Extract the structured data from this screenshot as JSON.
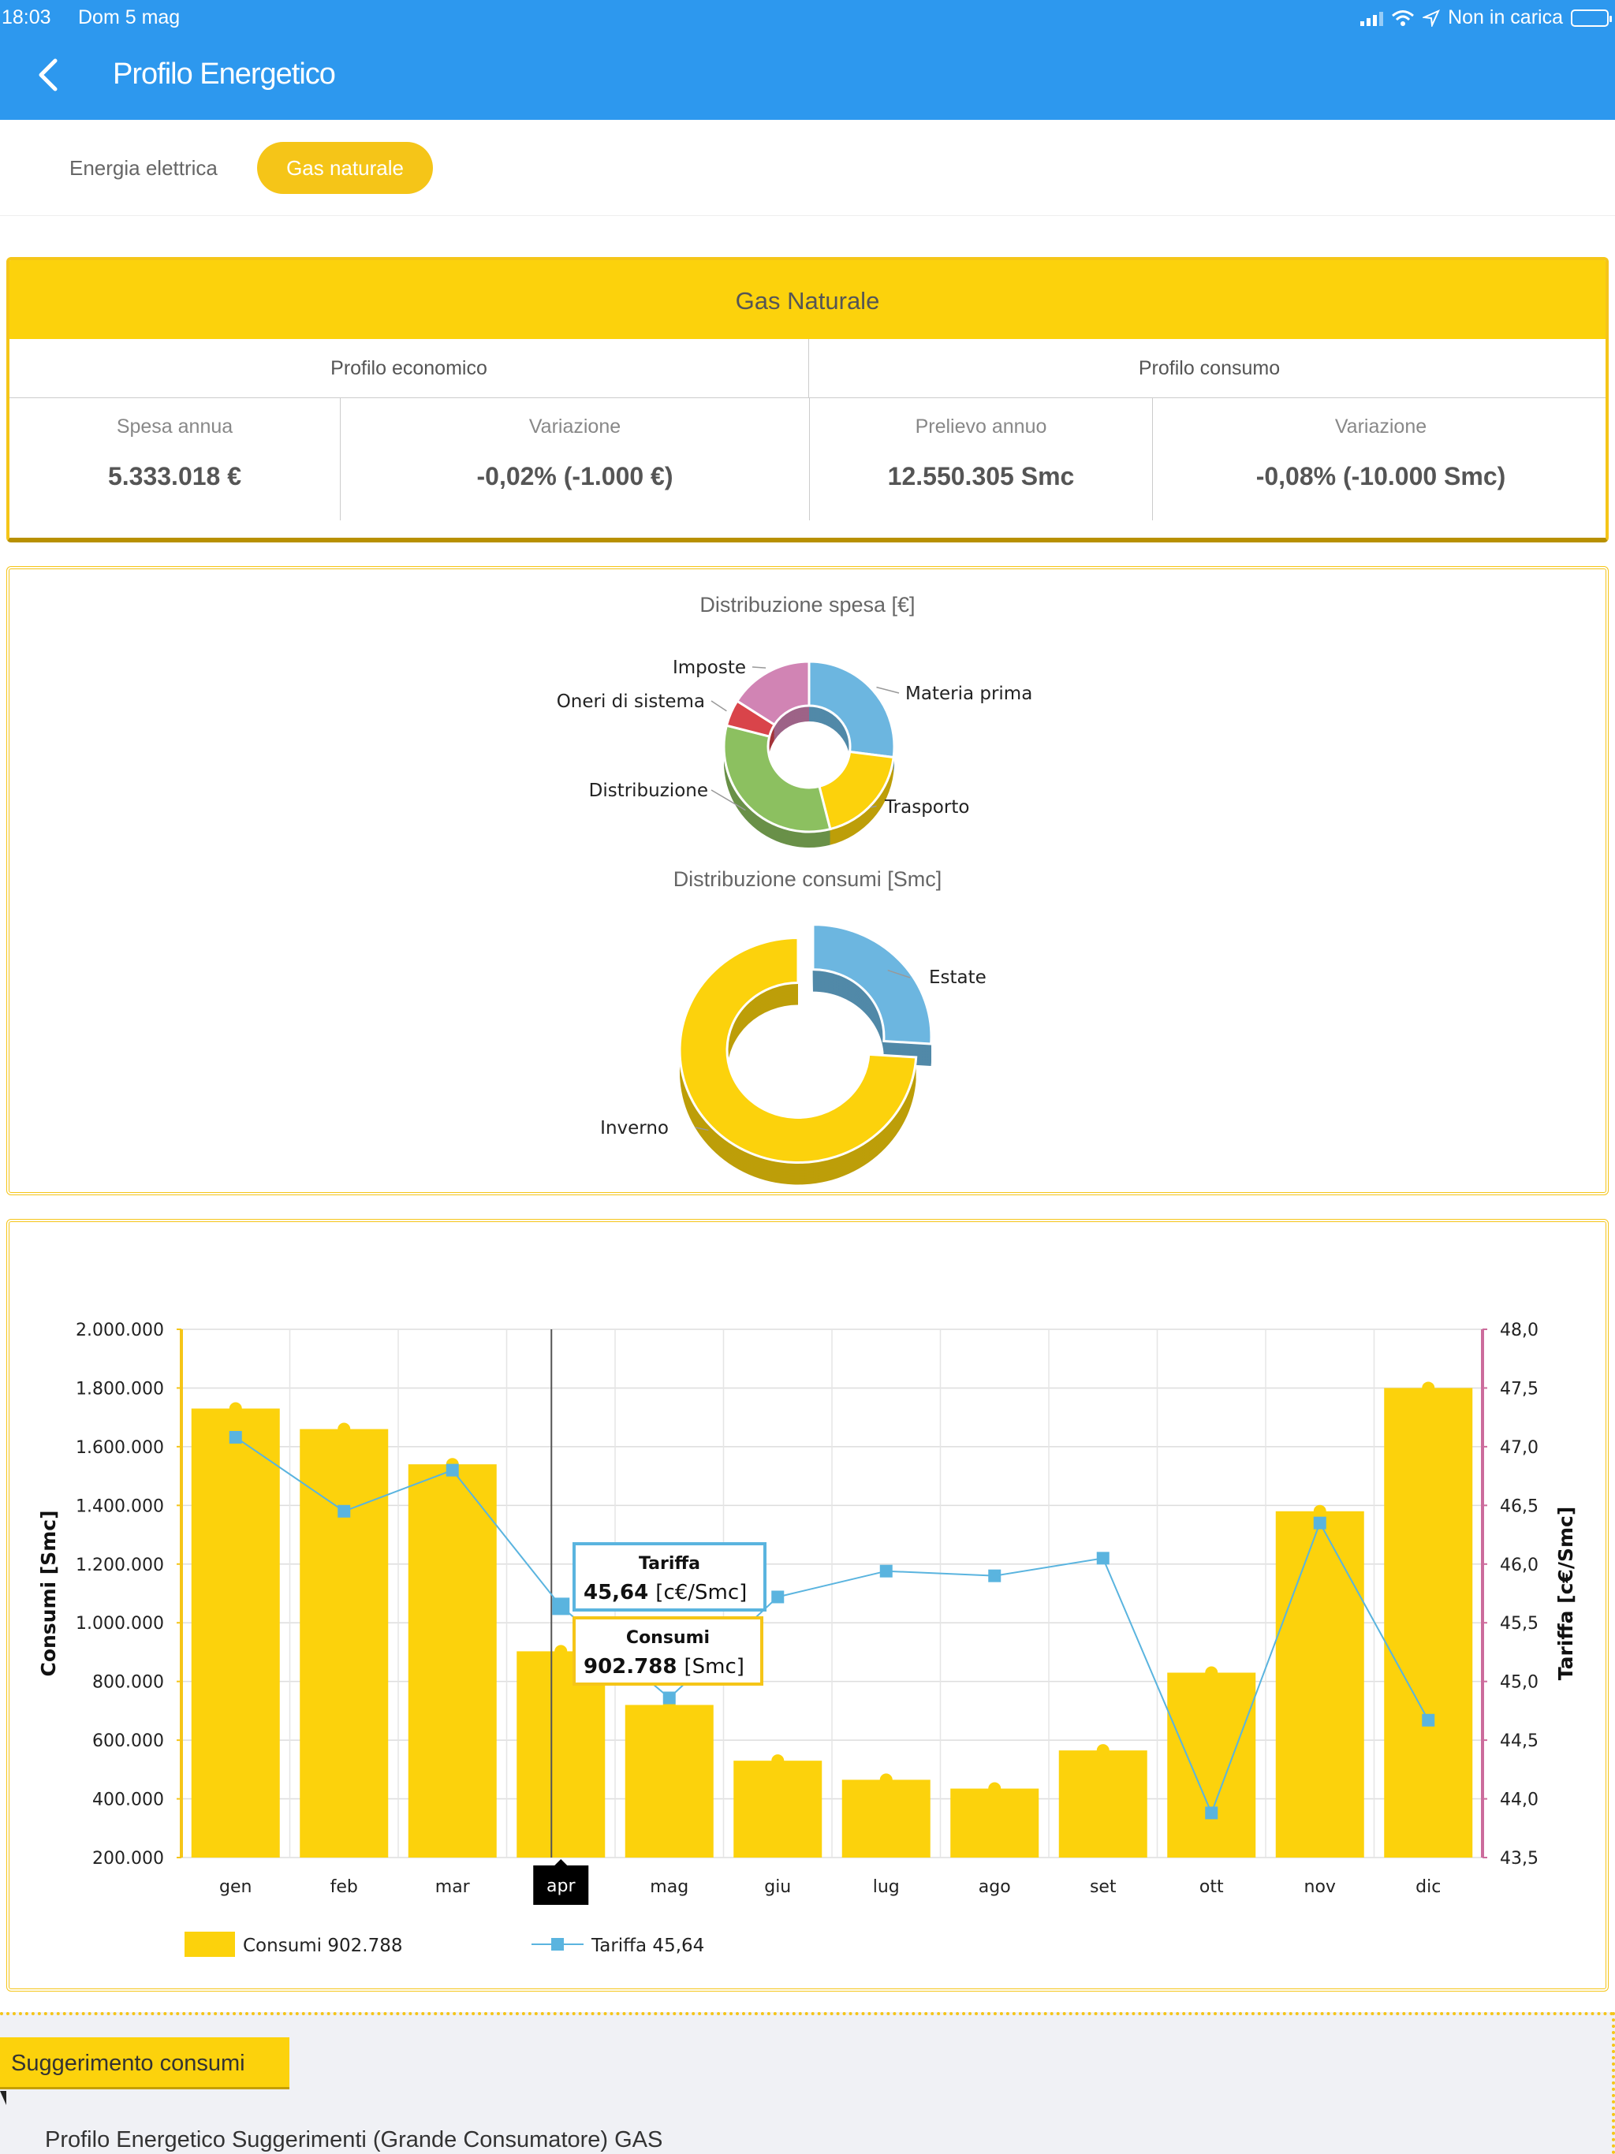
{
  "status_bar": {
    "time": "18:03",
    "date": "Dom 5 mag",
    "battery_text": "Non in carica"
  },
  "nav": {
    "title": "Profilo Energetico",
    "back_icon": "chevron-left-icon"
  },
  "tabs": [
    {
      "label": "Energia elettrica",
      "active": false
    },
    {
      "label": "Gas naturale",
      "active": true
    }
  ],
  "profile": {
    "title": "Gas Naturale",
    "economic_title": "Profilo economico",
    "consumption_title": "Profilo consumo",
    "cells": [
      {
        "label": "Spesa annua",
        "value": "5.333.018 €"
      },
      {
        "label": "Variazione",
        "value": "-0,02% (-1.000 €)"
      },
      {
        "label": "Prelievo annuo",
        "value": "12.550.305 Smc"
      },
      {
        "label": "Variazione",
        "value": "-0,08% (-10.000 Smc)"
      }
    ]
  },
  "colors": {
    "accent": "#fcd20c",
    "header": "#2d98ee",
    "tariff": "#5ab4df"
  },
  "chart_data": [
    {
      "type": "pie",
      "title": "Distribuzione spesa [€]",
      "labels": [
        "Materia prima",
        "Trasporto",
        "Distribuzione",
        "Oneri di sistema",
        "Imposte"
      ],
      "values": [
        27,
        19,
        33,
        5,
        16
      ],
      "colors": [
        "#6cb6e0",
        "#fcd20c",
        "#8cc060",
        "#d9444a",
        "#d184b4"
      ]
    },
    {
      "type": "pie",
      "title": "Distribuzione consumi [Smc]",
      "labels": [
        "Estate",
        "Inverno"
      ],
      "values": [
        26,
        74
      ],
      "colors": [
        "#6cb6e0",
        "#fcd20c"
      ]
    },
    {
      "type": "bar",
      "categories": [
        "gen",
        "feb",
        "mar",
        "apr",
        "mag",
        "giu",
        "lug",
        "ago",
        "set",
        "ott",
        "nov",
        "dic"
      ],
      "series": [
        {
          "name": "Consumi",
          "type": "bar",
          "axis": "left",
          "values": [
            1730000,
            1660000,
            1540000,
            902788,
            720000,
            530000,
            465000,
            435000,
            565000,
            830000,
            1380000,
            1800000
          ]
        },
        {
          "name": "Tariffa",
          "type": "line",
          "axis": "right",
          "values": [
            47.08,
            46.45,
            46.8,
            45.64,
            44.86,
            45.72,
            45.94,
            45.9,
            46.05,
            43.88,
            46.35,
            44.67
          ]
        }
      ],
      "ylabel": "Consumi [Smc]",
      "y2label": "Tariffa [c€/Smc]",
      "ylim": [
        200000,
        2000000
      ],
      "y2lim": [
        43.5,
        48.0
      ],
      "yticks": [
        "200.000",
        "400.000",
        "600.000",
        "800.000",
        "1.000.000",
        "1.200.000",
        "1.400.000",
        "1.600.000",
        "1.800.000",
        "2.000.000"
      ],
      "y2ticks": [
        "43,5",
        "44,0",
        "44,5",
        "45,0",
        "45,5",
        "46,0",
        "46,5",
        "47,0",
        "47,5",
        "48,0"
      ],
      "grid": true,
      "legend": "bottom-left",
      "selected_category": "apr",
      "tooltips": {
        "tariffa_title": "Tariffa",
        "tariffa_value": "45,64",
        "tariffa_unit": "[c€/Smc]",
        "consumi_title": "Consumi",
        "consumi_value": "902.788",
        "consumi_unit": "[Smc]"
      },
      "legend_items": [
        {
          "name": "Consumi",
          "value": "902.788"
        },
        {
          "name": "Tariffa",
          "value": "45,64"
        }
      ]
    }
  ],
  "suggestion": {
    "tag": "Suggerimento consumi",
    "text": "Profilo Energetico Suggerimenti (Grande Consumatore) GAS"
  }
}
